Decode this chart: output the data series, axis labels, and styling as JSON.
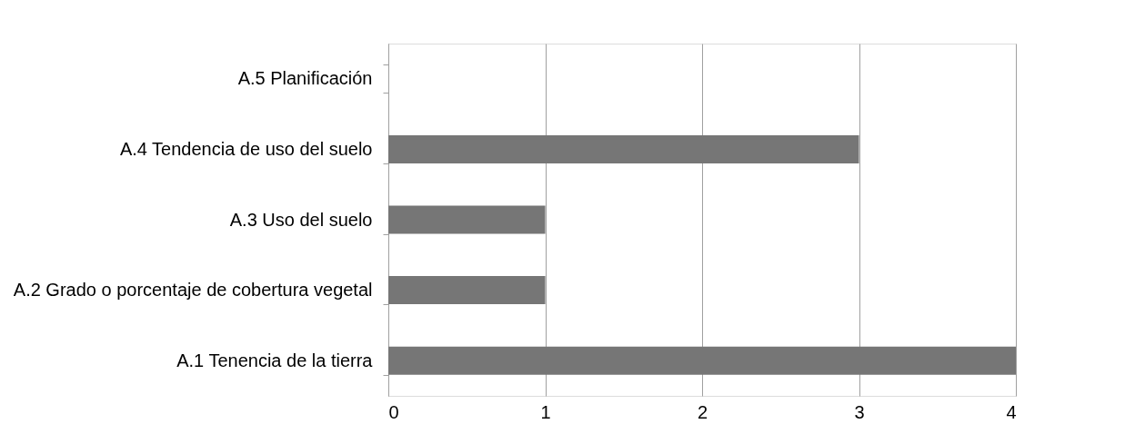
{
  "chart_data": {
    "type": "bar",
    "orientation": "horizontal",
    "categories": [
      "A.5 Planificación",
      "A.4 Tendencia de uso del suelo",
      "A.3 Uso del suelo",
      "A.2 Grado o porcentaje de cobertura vegetal",
      "A.1 Tenencia de la tierra"
    ],
    "values": [
      0,
      3,
      1,
      1,
      4
    ],
    "color": "#767676",
    "xlim": [
      0,
      4
    ],
    "xticks": [
      0,
      1,
      2,
      3,
      4
    ],
    "grid": "x"
  }
}
